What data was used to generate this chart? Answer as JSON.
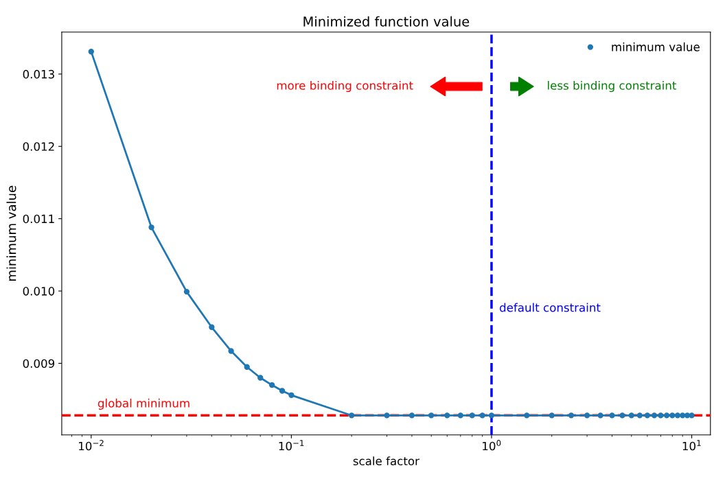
{
  "chart_data": {
    "type": "line",
    "title": "Minimized function value",
    "xlabel": "scale factor",
    "ylabel": "minimum value",
    "x": [
      0.01,
      0.02,
      0.03,
      0.04,
      0.05,
      0.06,
      0.07,
      0.08,
      0.09,
      0.1,
      0.2,
      0.3,
      0.4,
      0.5,
      0.6,
      0.7,
      0.8,
      0.9,
      1.0,
      1.5,
      2.0,
      2.5,
      3.0,
      3.5,
      4.0,
      4.5,
      5.0,
      5.5,
      6.0,
      6.5,
      7.0,
      7.5,
      8.0,
      8.5,
      9.0,
      9.5,
      10.0
    ],
    "series": [
      {
        "name": "minimum value",
        "color": "#1f77b4",
        "values": [
          0.01331,
          0.01088,
          0.00999,
          0.0095,
          0.00917,
          0.00895,
          0.0088,
          0.0087,
          0.00862,
          0.00856,
          0.00828,
          0.00828,
          0.00828,
          0.00828,
          0.00828,
          0.00828,
          0.00828,
          0.00828,
          0.00828,
          0.00828,
          0.00828,
          0.00828,
          0.00828,
          0.00828,
          0.00828,
          0.00828,
          0.00828,
          0.00828,
          0.00828,
          0.00828,
          0.00828,
          0.00828,
          0.00828,
          0.00828,
          0.00828,
          0.00828,
          0.00828
        ]
      }
    ],
    "log": "x",
    "marker": "circle",
    "line_style": "solid",
    "legend": "top right",
    "grid": false,
    "xlim": [
      0.00713,
      12.4
    ],
    "xticks": [
      {
        "value": 0.01,
        "label": "10$^{−2}$"
      },
      {
        "value": 0.1,
        "label": "10$^{−1}$"
      },
      {
        "value": 1,
        "label": "10$^{0}$"
      },
      {
        "value": 10,
        "label": "10$^{1}$"
      }
    ],
    "ylim": [
      0.00801,
      0.01358
    ],
    "yticks": [
      0.009,
      {
        "value": 0.01,
        "label": "0.010"
      },
      0.011,
      0.012,
      0.013
    ],
    "ref_lines": [
      {
        "axis": "x",
        "value": 1,
        "label": "default constraint",
        "color": "#0000ff",
        "line_style": "dashed"
      },
      {
        "axis": "y",
        "value": 0.00828,
        "label": "global minimum",
        "color": "#ff0000",
        "line_style": "dashed"
      }
    ],
    "annotations": [
      "more binding constraint",
      "less binding constraint"
    ]
  }
}
